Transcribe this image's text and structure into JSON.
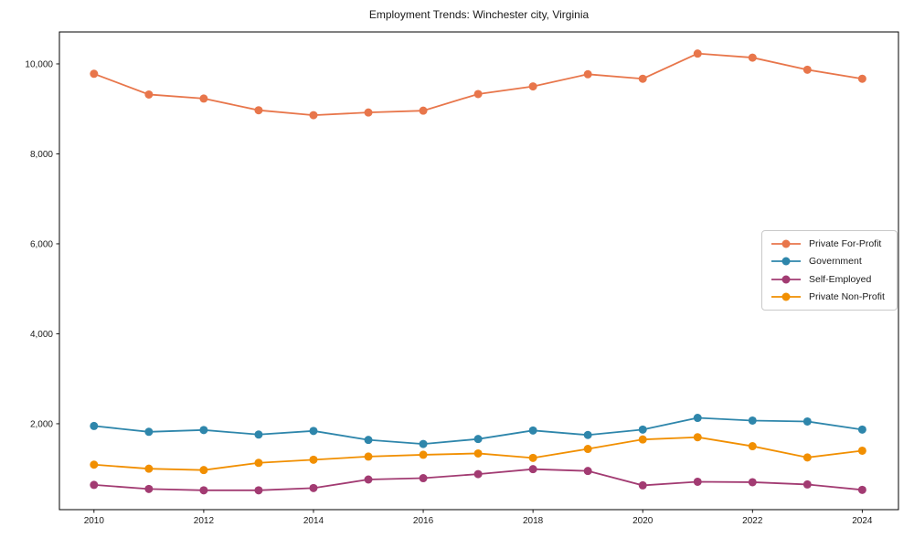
{
  "title": "Employment Trends: Winchester city, Virginia",
  "colors": {
    "private_for_profit": "#e8764b",
    "government": "#2e86ab",
    "self_employed": "#a23b72",
    "private_non_profit": "#f18f01",
    "spine": "#000000",
    "tick_text": "#1a1a1a",
    "legend_border": "#c9c9c9",
    "background": "#ffffff"
  },
  "chart_data": {
    "type": "line",
    "title": "Employment Trends: Winchester city, Virginia",
    "xlabel": "",
    "ylabel": "",
    "grid": false,
    "marker": "o",
    "legend_position": "center right",
    "x": [
      2010,
      2011,
      2012,
      2013,
      2014,
      2015,
      2016,
      2017,
      2018,
      2019,
      2020,
      2021,
      2022,
      2023,
      2024
    ],
    "series": [
      {
        "name": "Private For-Profit",
        "color": "#e8764b",
        "values": [
          9780,
          9320,
          9230,
          8970,
          8860,
          8920,
          8960,
          9330,
          9500,
          9770,
          9670,
          10230,
          10140,
          9870,
          9670
        ]
      },
      {
        "name": "Government",
        "color": "#2e86ab",
        "values": [
          1950,
          1820,
          1860,
          1760,
          1840,
          1640,
          1550,
          1660,
          1850,
          1750,
          1870,
          2130,
          2070,
          2050,
          1870
        ]
      },
      {
        "name": "Self-Employed",
        "color": "#a23b72",
        "values": [
          640,
          550,
          520,
          520,
          570,
          760,
          790,
          880,
          990,
          950,
          630,
          710,
          700,
          650,
          530
        ]
      },
      {
        "name": "Private Non-Profit",
        "color": "#f18f01",
        "values": [
          1090,
          1000,
          970,
          1130,
          1200,
          1270,
          1310,
          1340,
          1240,
          1440,
          1650,
          1700,
          1500,
          1250,
          1400
        ]
      }
    ],
    "xticks": {
      "values": [
        2010,
        2012,
        2014,
        2016,
        2018,
        2020,
        2022,
        2024
      ],
      "labels": [
        "2010",
        "2012",
        "2014",
        "2016",
        "2018",
        "2020",
        "2022",
        "2024"
      ]
    },
    "yticks": {
      "values": [
        2000,
        4000,
        6000,
        8000,
        10000
      ],
      "labels": [
        "2,000",
        "4,000",
        "6,000",
        "8,000",
        "10,000"
      ]
    },
    "xlim": [
      2009.37,
      2024.66
    ],
    "ylim": [
      90,
      10710
    ]
  }
}
